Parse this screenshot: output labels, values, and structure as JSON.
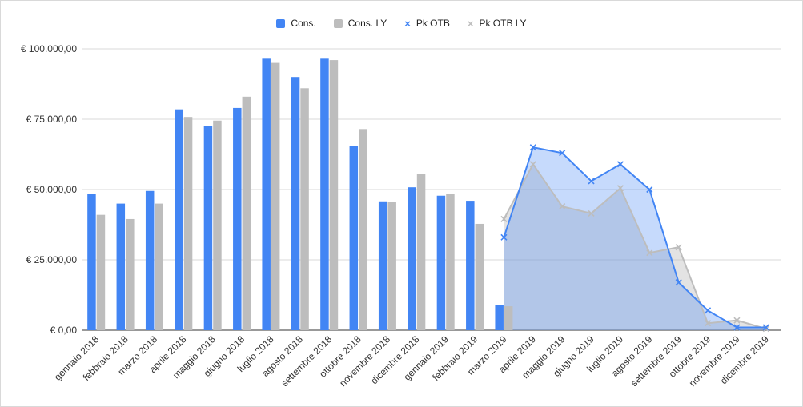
{
  "chart_data": {
    "type": "bar",
    "title": "",
    "xlabel": "",
    "ylabel": "",
    "ylim": [
      0,
      100000
    ],
    "ytick_values": [
      0,
      25000,
      50000,
      75000,
      100000
    ],
    "ytick_labels": [
      "€ 0,00",
      "€ 25.000,00",
      "€ 50.000,00",
      "€ 75.000,00",
      "€ 100.000,00"
    ],
    "grid": true,
    "legend_position": "top-center",
    "categories": [
      "gennaio 2018",
      "febbraio 2018",
      "marzo 2018",
      "aprile 2018",
      "maggio 2018",
      "giugno 2018",
      "luglio 2018",
      "agosto 2018",
      "settembre 2018",
      "ottobre 2018",
      "novembre 2018",
      "dicembre 2018",
      "gennaio 2019",
      "febbraio 2019",
      "marzo 2019",
      "aprile 2019",
      "maggio 2019",
      "giugno 2019",
      "luglio 2019",
      "agosto 2019",
      "settembre 2019",
      "ottobre 2019",
      "novembre 2019",
      "dicembre 2019"
    ],
    "series": [
      {
        "name": "Cons.",
        "type": "bar",
        "color": "#4285f4",
        "values": [
          48500,
          45000,
          49500,
          78500,
          72500,
          79000,
          96500,
          90000,
          96500,
          65500,
          45800,
          50800,
          47800,
          46000,
          9000,
          null,
          null,
          null,
          null,
          null,
          null,
          null,
          null,
          null
        ]
      },
      {
        "name": "Cons. LY",
        "type": "bar",
        "color": "#bdbdbd",
        "values": [
          41000,
          39500,
          45000,
          75800,
          74500,
          83000,
          95000,
          86000,
          96000,
          71500,
          45600,
          55500,
          48500,
          37800,
          8500,
          null,
          null,
          null,
          null,
          null,
          null,
          null,
          null,
          null
        ]
      },
      {
        "name": "Pk OTB",
        "type": "area",
        "color": "#4285f4",
        "values": [
          null,
          null,
          null,
          null,
          null,
          null,
          null,
          null,
          null,
          null,
          null,
          null,
          null,
          null,
          33000,
          65000,
          63000,
          53000,
          59000,
          50000,
          17000,
          7000,
          1000,
          1000
        ]
      },
      {
        "name": "Pk OTB LY",
        "type": "area",
        "color": "#bdbdbd",
        "values": [
          null,
          null,
          null,
          null,
          null,
          null,
          null,
          null,
          null,
          null,
          null,
          null,
          null,
          null,
          39500,
          59000,
          44000,
          41500,
          50500,
          27500,
          29500,
          2500,
          3500,
          500
        ]
      }
    ]
  }
}
